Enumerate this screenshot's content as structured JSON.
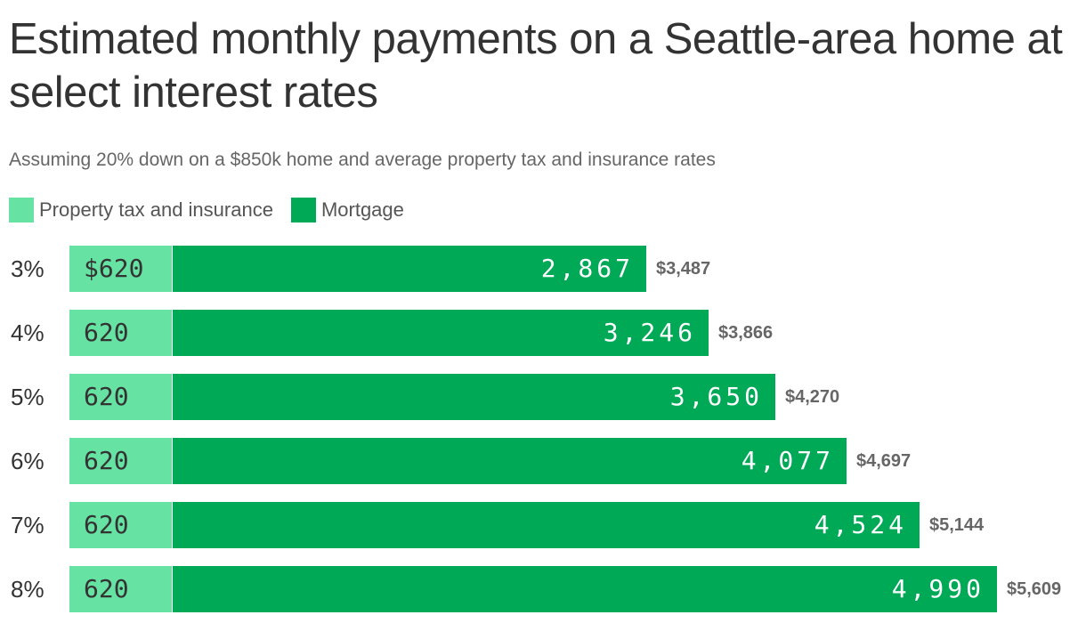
{
  "title": "Estimated monthly payments on a Seattle-area home at select interest rates",
  "subtitle": "Assuming 20% down on a $850k home and average property tax and insurance rates",
  "legend": [
    {
      "label": "Property tax and insurance",
      "color": "#66e2a3"
    },
    {
      "label": "Mortgage",
      "color": "#00a956"
    }
  ],
  "rows": [
    {
      "rate": "3%",
      "prop_label": "$620",
      "mort_label": "2,867",
      "total_label": "$3,487"
    },
    {
      "rate": "4%",
      "prop_label": "620",
      "mort_label": "3,246",
      "total_label": "$3,866"
    },
    {
      "rate": "5%",
      "prop_label": "620",
      "mort_label": "3,650",
      "total_label": "$4,270"
    },
    {
      "rate": "6%",
      "prop_label": "620",
      "mort_label": "4,077",
      "total_label": "$4,697"
    },
    {
      "rate": "7%",
      "prop_label": "620",
      "mort_label": "4,524",
      "total_label": "$5,144"
    },
    {
      "rate": "8%",
      "prop_label": "620",
      "mort_label": "4,990",
      "total_label": "$5,609"
    }
  ],
  "chart_data": {
    "type": "bar",
    "orientation": "horizontal",
    "stacked": true,
    "title": "Estimated monthly payments on a Seattle-area home at select interest rates",
    "subtitle": "Assuming 20% down on a $850k home and average property tax and insurance rates",
    "categories": [
      "3%",
      "4%",
      "5%",
      "6%",
      "7%",
      "8%"
    ],
    "series": [
      {
        "name": "Property tax and insurance",
        "color": "#66e2a3",
        "values": [
          620,
          620,
          620,
          620,
          620,
          620
        ]
      },
      {
        "name": "Mortgage",
        "color": "#00a956",
        "values": [
          2867,
          3246,
          3650,
          4077,
          4524,
          4990
        ]
      }
    ],
    "totals": [
      3487,
      3866,
      4270,
      4697,
      5144,
      5609
    ],
    "xlabel": "",
    "ylabel": "",
    "grid": false,
    "legend_position": "top-left"
  }
}
